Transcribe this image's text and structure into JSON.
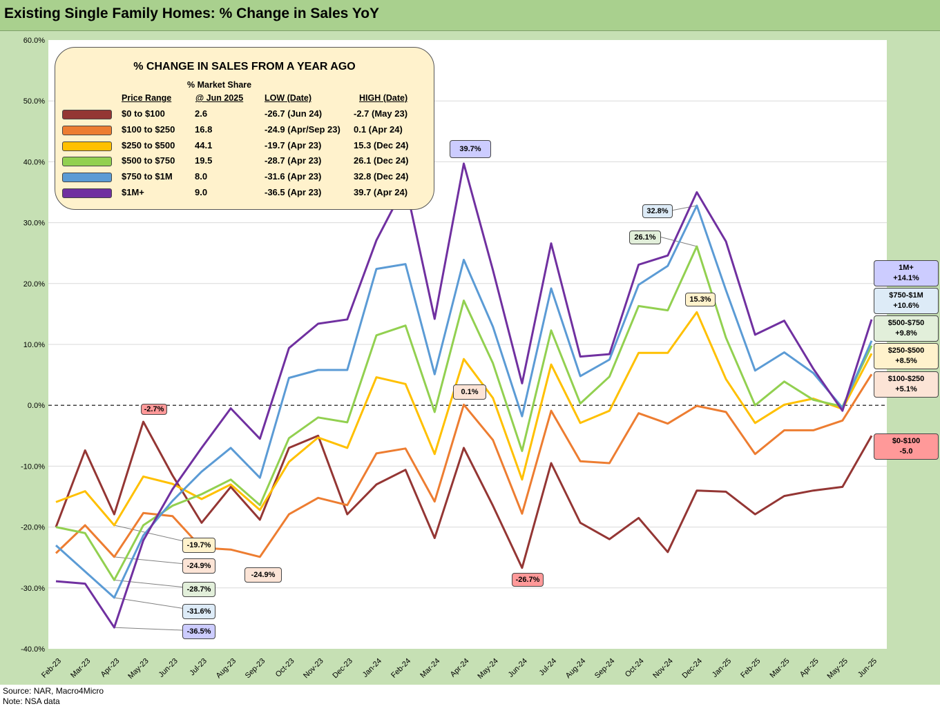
{
  "title": "Existing Single Family Homes: % Change in Sales YoY",
  "footer": {
    "source": "Source: NAR, Macro4Micro",
    "note": "Note: NSA data"
  },
  "legend": {
    "title": "% CHANGE IN SALES FROM A YEAR AGO",
    "headers": {
      "price_range": "Price Range",
      "share_line1": "% Market Share",
      "share_line2": "@ Jun 2025",
      "low": "LOW  (Date)",
      "high": "HIGH  (Date)"
    },
    "rows": [
      {
        "range": "$0 to $100",
        "share": "2.6",
        "low": "-26.7  (Jun 24)",
        "high": "-2.7  (May 23)",
        "color": "#943634"
      },
      {
        "range": "$100 to $250",
        "share": "16.8",
        "low": "-24.9  (Apr/Sep 23)",
        "high": "0.1  (Apr 24)",
        "color": "#ed7d31"
      },
      {
        "range": "$250 to $500",
        "share": "44.1",
        "low": "-19.7  (Apr 23)",
        "high": "15.3  (Dec 24)",
        "color": "#ffc000"
      },
      {
        "range": "$500 to $750",
        "share": "19.5",
        "low": "-28.7  (Apr 23)",
        "high": "26.1  (Dec 24)",
        "color": "#92d050"
      },
      {
        "range": "$750 to $1M",
        "share": "8.0",
        "low": "-31.6  (Apr 23)",
        "high": "32.8  (Dec 24)",
        "color": "#5b9bd5"
      },
      {
        "range": "$1M+",
        "share": "9.0",
        "low": "-36.5  (Apr 23)",
        "high": "39.7  (Apr 24)",
        "color": "#7030a0"
      }
    ]
  },
  "callouts": {
    "c_neg2_7": "-2.7%",
    "c_39_7": "39.7%",
    "c_32_8": "32.8%",
    "c_26_1": "26.1%",
    "c_15_3": "15.3%",
    "c_0_1": "0.1%",
    "c_neg19_7": "-19.7%",
    "c_neg24_9a": "-24.9%",
    "c_neg24_9b": "-24.9%",
    "c_neg28_7": "-28.7%",
    "c_neg31_6": "-31.6%",
    "c_neg36_5": "-36.5%",
    "c_neg26_7": "-26.7%"
  },
  "end_labels": [
    {
      "line1": "1M+",
      "line2": "+14.1%",
      "bg": "#ccccff"
    },
    {
      "line1": "$750-$1M",
      "line2": "+10.6%",
      "bg": "#ddebf7"
    },
    {
      "line1": "$500-$750",
      "line2": "+9.8%",
      "bg": "#e2efda"
    },
    {
      "line1": "$250-$500",
      "line2": "+8.5%",
      "bg": "#fff2cc"
    },
    {
      "line1": "$100-$250",
      "line2": "+5.1%",
      "bg": "#fce4d6"
    },
    {
      "line1": "$0-$100",
      "line2": "-5.0",
      "bg": "#ff9999"
    }
  ],
  "chart_data": {
    "type": "line",
    "ylim": [
      -40,
      60
    ],
    "ytick_labels": [
      "60.0%",
      "50.0%",
      "40.0%",
      "30.0%",
      "20.0%",
      "10.0%",
      "0.0%",
      "-10.0%",
      "-20.0%",
      "-30.0%",
      "-40.0%"
    ],
    "categories": [
      "Feb-23",
      "Mar-23",
      "Apr-23",
      "May-23",
      "Jun-23",
      "Jul-23",
      "Aug-23",
      "Sep-23",
      "Oct-23",
      "Nov-23",
      "Dec-23",
      "Jan-24",
      "Feb-24",
      "Mar-24",
      "Apr-24",
      "May-24",
      "Jun-24",
      "Jul-24",
      "Aug-24",
      "Sep-24",
      "Oct-24",
      "Nov-24",
      "Dec-24",
      "Jan-25",
      "Feb-25",
      "Mar-25",
      "Apr-25",
      "May-25",
      "Jun-25"
    ],
    "series": [
      {
        "name": "$0 to $100",
        "color": "#943634",
        "values": [
          -20.0,
          -7.4,
          -17.9,
          -2.7,
          -11.5,
          -19.3,
          -13.4,
          -18.8,
          -7.0,
          -5.0,
          -17.9,
          -13.0,
          -10.6,
          -21.8,
          -7.0,
          -16.5,
          -26.7,
          -9.5,
          -19.3,
          -22.0,
          -18.5,
          -24.1,
          -14.0,
          -14.2,
          -17.9,
          -14.9,
          -14.0,
          -13.4,
          -5.0
        ]
      },
      {
        "name": "$100 to $250",
        "color": "#ed7d31",
        "values": [
          -24.3,
          -19.7,
          -24.9,
          -17.7,
          -18.2,
          -23.4,
          -23.7,
          -24.9,
          -17.9,
          -15.2,
          -16.4,
          -7.9,
          -7.1,
          -15.8,
          0.1,
          -5.7,
          -17.8,
          -0.9,
          -9.2,
          -9.5,
          -1.3,
          -3.0,
          -0.1,
          -1.1,
          -8.0,
          -4.1,
          -4.1,
          -2.5,
          5.1
        ]
      },
      {
        "name": "$250 to $500",
        "color": "#ffc000",
        "values": [
          -15.9,
          -14.1,
          -19.7,
          -11.7,
          -12.9,
          -15.4,
          -13.0,
          -17.2,
          -9.3,
          -5.3,
          -7.0,
          4.6,
          3.5,
          -8.0,
          7.6,
          1.2,
          -12.2,
          6.7,
          -2.9,
          -0.9,
          8.6,
          8.6,
          15.3,
          4.3,
          -2.9,
          0.1,
          1.1,
          -0.6,
          8.5
        ]
      },
      {
        "name": "$500 to $750",
        "color": "#92d050",
        "values": [
          -20.0,
          -21.0,
          -28.7,
          -19.7,
          -16.5,
          -14.6,
          -12.2,
          -16.4,
          -5.4,
          -2.0,
          -2.8,
          11.5,
          13.1,
          -1.1,
          17.2,
          6.9,
          -7.5,
          12.3,
          0.3,
          4.7,
          16.3,
          15.6,
          26.1,
          11.1,
          0.0,
          3.9,
          0.9,
          -0.2,
          9.8
        ]
      },
      {
        "name": "$750 to $1M",
        "color": "#5b9bd5",
        "values": [
          -23.0,
          -27.3,
          -31.6,
          -21.4,
          -15.7,
          -10.9,
          -7.0,
          -11.9,
          4.5,
          5.8,
          5.8,
          22.4,
          23.2,
          5.1,
          23.9,
          12.9,
          -1.8,
          19.2,
          4.8,
          7.5,
          19.8,
          22.9,
          32.8,
          18.9,
          5.7,
          8.7,
          5.3,
          -0.4,
          10.6
        ]
      },
      {
        "name": "$1M+",
        "color": "#7030a0",
        "values": [
          -28.9,
          -29.3,
          -36.5,
          -22.2,
          -13.8,
          -7.0,
          -0.5,
          -5.5,
          9.4,
          13.4,
          14.1,
          27.1,
          36.3,
          14.2,
          39.7,
          22.2,
          3.6,
          26.6,
          8.0,
          8.4,
          23.1,
          24.6,
          35.0,
          26.9,
          11.6,
          13.9,
          6.0,
          -0.9,
          14.1
        ]
      }
    ]
  }
}
